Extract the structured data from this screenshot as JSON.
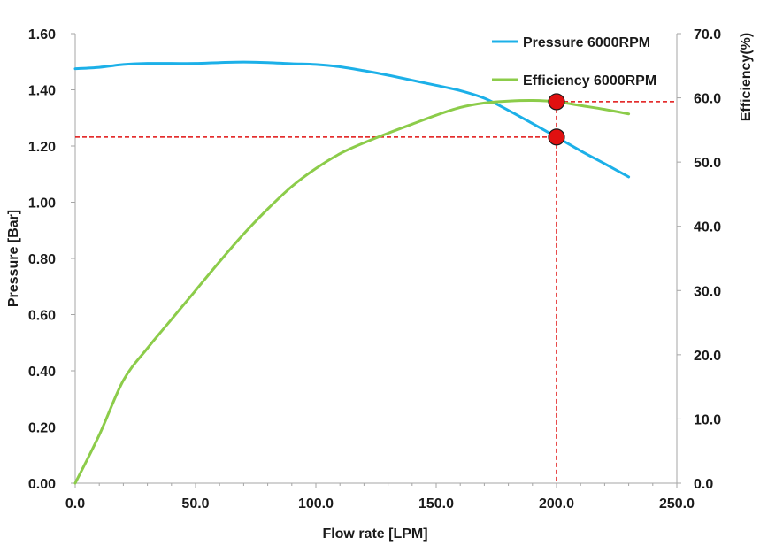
{
  "chart_data": {
    "type": "line",
    "xlabel": "Flow rate [LPM]",
    "ylabel": "Pressure [Bar]",
    "y2label": "Efficiency(%)",
    "xlim": [
      0,
      250
    ],
    "ylim": [
      0,
      1.6
    ],
    "y2lim": [
      0,
      70
    ],
    "x_ticks": [
      "0.0",
      "50.0",
      "100.0",
      "150.0",
      "200.0",
      "250.0"
    ],
    "y_ticks": [
      "0.00",
      "0.20",
      "0.40",
      "0.60",
      "0.80",
      "1.00",
      "1.20",
      "1.40",
      "1.60"
    ],
    "y2_ticks": [
      "0.0",
      "10.0",
      "20.0",
      "30.0",
      "40.0",
      "50.0",
      "60.0",
      "70.0"
    ],
    "grid": false,
    "legend_position": "top-right",
    "series": [
      {
        "name": "Pressure 6000RPM",
        "axis": "left",
        "color": "#1cb0e8",
        "x": [
          0,
          10,
          20,
          30,
          40,
          50,
          60,
          70,
          80,
          90,
          100,
          110,
          120,
          130,
          140,
          150,
          160,
          170,
          180,
          190,
          200,
          210,
          220,
          230
        ],
        "values": [
          1.475,
          1.48,
          1.49,
          1.494,
          1.494,
          1.494,
          1.497,
          1.499,
          1.497,
          1.493,
          1.49,
          1.482,
          1.468,
          1.452,
          1.434,
          1.416,
          1.397,
          1.37,
          1.327,
          1.28,
          1.232,
          1.183,
          1.137,
          1.09
        ]
      },
      {
        "name": "Efficiency 6000RPM",
        "axis": "right",
        "color": "#8ccc4a",
        "x": [
          0,
          10,
          20,
          30,
          40,
          50,
          60,
          70,
          80,
          90,
          100,
          110,
          120,
          130,
          140,
          150,
          160,
          170,
          180,
          190,
          200,
          210,
          220,
          230
        ],
        "values": [
          0,
          7.5,
          16.0,
          21.0,
          25.5,
          30.0,
          34.5,
          38.8,
          42.7,
          46.2,
          49.0,
          51.3,
          53.0,
          54.5,
          55.9,
          57.3,
          58.5,
          59.2,
          59.5,
          59.6,
          59.4,
          58.8,
          58.2,
          57.5
        ]
      }
    ],
    "markers": [
      {
        "x": 200,
        "y": 1.232,
        "axis": "left",
        "color": "#e01010"
      },
      {
        "x": 200,
        "y": 59.4,
        "axis": "right",
        "color": "#e01010"
      }
    ],
    "reference_lines": {
      "color": "#e01010",
      "style": "dashed"
    }
  }
}
